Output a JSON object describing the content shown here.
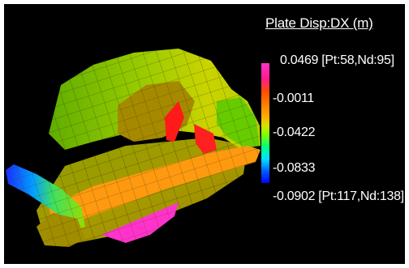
{
  "legend": {
    "title": "Plate Disp:DX (m)",
    "values": [
      "0.0469 [Pt:58,Nd:95]",
      "-0.0011",
      "-0.0422",
      "-0.0833",
      "-0.0902 [Pt:117,Nd:138]"
    ]
  },
  "colors": {
    "background": "#000000",
    "mesh_lines": "#5a3a00",
    "orange": "#ff9a10",
    "green": "#66cc00",
    "yellow_green": "#c8d800",
    "red": "#ff1a1a",
    "magenta": "#ff33cc",
    "blue": "#1a3cff"
  }
}
